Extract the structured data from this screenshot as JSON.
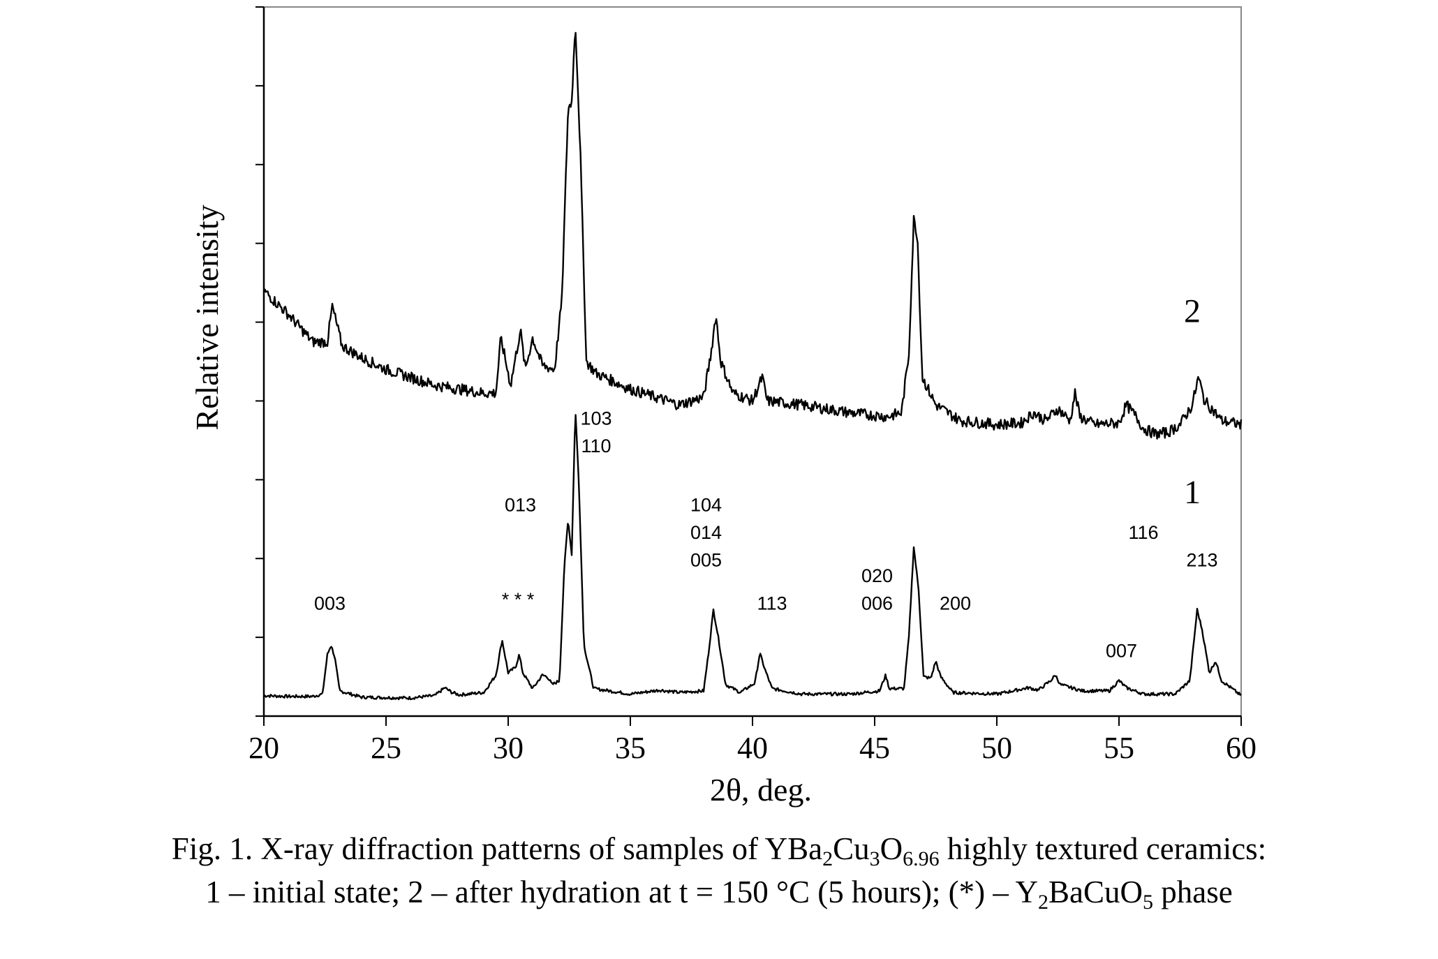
{
  "chart_data": {
    "type": "line",
    "xlabel": "2θ, deg.",
    "ylabel": "Relative intensity",
    "xlim": [
      20,
      60
    ],
    "ylim": [
      0,
      9
    ],
    "x_ticks": [
      20,
      25,
      30,
      35,
      40,
      45,
      50,
      55,
      60
    ],
    "x_tick_labels": [
      "20",
      "25",
      "30",
      "35",
      "40",
      "45",
      "50",
      "55",
      "60"
    ],
    "y_tick_count": 9,
    "y_tick_labels_shown": false,
    "grid": false,
    "legend": "none",
    "series": [
      {
        "name": "1",
        "noise": 0.02,
        "points": [
          [
            20,
            0.26
          ],
          [
            21,
            0.25
          ],
          [
            22,
            0.25
          ],
          [
            22.4,
            0.28
          ],
          [
            22.6,
            0.78
          ],
          [
            22.75,
            0.9
          ],
          [
            22.9,
            0.75
          ],
          [
            23.1,
            0.32
          ],
          [
            24,
            0.24
          ],
          [
            26,
            0.23
          ],
          [
            27,
            0.26
          ],
          [
            27.4,
            0.36
          ],
          [
            27.7,
            0.3
          ],
          [
            28,
            0.27
          ],
          [
            29,
            0.3
          ],
          [
            29.5,
            0.52
          ],
          [
            29.75,
            0.97
          ],
          [
            30,
            0.55
          ],
          [
            30.3,
            0.62
          ],
          [
            30.45,
            0.78
          ],
          [
            30.6,
            0.55
          ],
          [
            31,
            0.35
          ],
          [
            31.4,
            0.52
          ],
          [
            31.6,
            0.5
          ],
          [
            31.8,
            0.4
          ],
          [
            32.1,
            0.45
          ],
          [
            32.3,
            1.9
          ],
          [
            32.45,
            2.5
          ],
          [
            32.6,
            2.05
          ],
          [
            32.75,
            3.9
          ],
          [
            32.9,
            2.9
          ],
          [
            33.1,
            0.9
          ],
          [
            33.5,
            0.35
          ],
          [
            35,
            0.28
          ],
          [
            36.2,
            0.33
          ],
          [
            37,
            0.3
          ],
          [
            38,
            0.32
          ],
          [
            38.2,
            0.8
          ],
          [
            38.4,
            1.35
          ],
          [
            38.6,
            1.0
          ],
          [
            38.9,
            0.4
          ],
          [
            39.5,
            0.3
          ],
          [
            40.1,
            0.42
          ],
          [
            40.3,
            0.8
          ],
          [
            40.5,
            0.6
          ],
          [
            40.8,
            0.35
          ],
          [
            42,
            0.28
          ],
          [
            44,
            0.28
          ],
          [
            45.2,
            0.32
          ],
          [
            45.45,
            0.52
          ],
          [
            45.6,
            0.35
          ],
          [
            46.2,
            0.35
          ],
          [
            46.4,
            1.0
          ],
          [
            46.6,
            2.15
          ],
          [
            46.8,
            1.6
          ],
          [
            47,
            0.5
          ],
          [
            47.3,
            0.48
          ],
          [
            47.5,
            0.7
          ],
          [
            47.7,
            0.5
          ],
          [
            48.2,
            0.3
          ],
          [
            50,
            0.28
          ],
          [
            51.3,
            0.36
          ],
          [
            51.7,
            0.33
          ],
          [
            52.2,
            0.45
          ],
          [
            52.4,
            0.52
          ],
          [
            52.6,
            0.4
          ],
          [
            53.5,
            0.32
          ],
          [
            54.6,
            0.32
          ],
          [
            55,
            0.45
          ],
          [
            55.3,
            0.36
          ],
          [
            56,
            0.28
          ],
          [
            57.3,
            0.28
          ],
          [
            57.9,
            0.45
          ],
          [
            58.2,
            1.35
          ],
          [
            58.4,
            1.1
          ],
          [
            58.7,
            0.55
          ],
          [
            58.95,
            0.7
          ],
          [
            59.2,
            0.45
          ],
          [
            60,
            0.26
          ]
        ]
      },
      {
        "name": "2",
        "noise": 0.07,
        "points": [
          [
            20,
            5.4
          ],
          [
            21,
            5.1
          ],
          [
            22,
            4.75
          ],
          [
            22.6,
            4.75
          ],
          [
            22.8,
            5.2
          ],
          [
            23.2,
            4.7
          ],
          [
            24,
            4.55
          ],
          [
            25,
            4.4
          ],
          [
            26,
            4.3
          ],
          [
            27,
            4.2
          ],
          [
            28,
            4.15
          ],
          [
            29,
            4.1
          ],
          [
            29.5,
            4.1
          ],
          [
            29.7,
            4.8
          ],
          [
            29.9,
            4.5
          ],
          [
            30.1,
            4.2
          ],
          [
            30.5,
            4.9
          ],
          [
            30.7,
            4.4
          ],
          [
            31,
            4.8
          ],
          [
            31.4,
            4.45
          ],
          [
            31.9,
            4.4
          ],
          [
            32.2,
            5.3
          ],
          [
            32.45,
            7.7
          ],
          [
            32.6,
            7.8
          ],
          [
            32.75,
            8.8
          ],
          [
            32.95,
            7.2
          ],
          [
            33.2,
            4.5
          ],
          [
            33.6,
            4.35
          ],
          [
            35,
            4.15
          ],
          [
            36,
            4.05
          ],
          [
            37,
            3.95
          ],
          [
            38,
            4.05
          ],
          [
            38.3,
            4.6
          ],
          [
            38.5,
            5.1
          ],
          [
            38.7,
            4.5
          ],
          [
            39.2,
            4.1
          ],
          [
            40,
            4.0
          ],
          [
            40.4,
            4.3
          ],
          [
            40.6,
            4.0
          ],
          [
            42,
            3.95
          ],
          [
            44,
            3.85
          ],
          [
            45.5,
            3.8
          ],
          [
            46.1,
            3.85
          ],
          [
            46.4,
            4.6
          ],
          [
            46.6,
            6.3
          ],
          [
            46.75,
            6.1
          ],
          [
            46.95,
            4.3
          ],
          [
            47.5,
            3.95
          ],
          [
            48.5,
            3.75
          ],
          [
            50,
            3.7
          ],
          [
            51,
            3.72
          ],
          [
            51.5,
            3.85
          ],
          [
            52,
            3.75
          ],
          [
            52.5,
            3.9
          ],
          [
            53,
            3.75
          ],
          [
            53.2,
            4.1
          ],
          [
            53.4,
            3.8
          ],
          [
            54,
            3.7
          ],
          [
            55,
            3.72
          ],
          [
            55.3,
            3.95
          ],
          [
            55.7,
            3.8
          ],
          [
            56,
            3.65
          ],
          [
            56.5,
            3.58
          ],
          [
            57,
            3.6
          ],
          [
            57.5,
            3.7
          ],
          [
            58,
            3.95
          ],
          [
            58.25,
            4.3
          ],
          [
            58.5,
            4.0
          ],
          [
            58.8,
            3.9
          ],
          [
            59.2,
            3.75
          ],
          [
            60,
            3.7
          ]
        ]
      }
    ],
    "curve_labels": [
      {
        "text": "2",
        "x": 58.0,
        "y": 5.0
      },
      {
        "text": "1",
        "x": 58.0,
        "y": 2.7
      }
    ],
    "annotations": [
      {
        "text": "003",
        "x": 22.7,
        "y": 1.35
      },
      {
        "text": "* *  *",
        "x": 30.4,
        "y": 1.4
      },
      {
        "text": "013",
        "x": 30.5,
        "y": 2.6
      },
      {
        "text": "103",
        "x": 33.6,
        "y": 3.7
      },
      {
        "text": "110",
        "x": 33.6,
        "y": 3.35
      },
      {
        "text": "104",
        "x": 38.1,
        "y": 2.6
      },
      {
        "text": "014",
        "x": 38.1,
        "y": 2.25
      },
      {
        "text": "005",
        "x": 38.1,
        "y": 1.9
      },
      {
        "text": "113",
        "x": 40.8,
        "y": 1.35
      },
      {
        "text": "020",
        "x": 45.1,
        "y": 1.7
      },
      {
        "text": "006",
        "x": 45.1,
        "y": 1.35
      },
      {
        "text": "200",
        "x": 48.3,
        "y": 1.35
      },
      {
        "text": "116",
        "x": 56.0,
        "y": 2.25
      },
      {
        "text": "213",
        "x": 58.4,
        "y": 1.9
      },
      {
        "text": "007",
        "x": 55.1,
        "y": 0.75
      }
    ]
  },
  "caption": {
    "line1_a": "Fig. 1. X-ray diffraction patterns of samples of YBa",
    "line1_sub1": "2",
    "line1_b": "Cu",
    "line1_sub2": "3",
    "line1_c": "O",
    "line1_sub3": "6.96",
    "line1_d": " highly textured ceramics:",
    "line2_a": "1 – initial state; 2 – after hydration at t = 150 °C (5 hours); (*) – Y",
    "line2_sub1": "2",
    "line2_b": "BaCuO",
    "line2_sub2": "5",
    "line2_c": " phase"
  }
}
